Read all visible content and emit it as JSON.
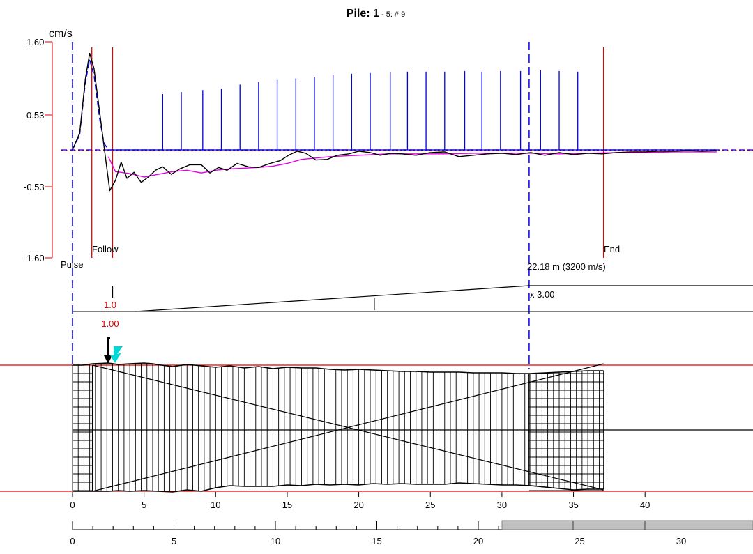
{
  "title": {
    "main": "Pile: 1",
    "suffix": " - 5: # 9"
  },
  "colors": {
    "velocity": "#000000",
    "model": "#e000e0",
    "reference": "#0000e0",
    "markers": "#e00000",
    "grid": "#000000",
    "cursor": "#00d8d8",
    "scrollbar": "#c0c0c0"
  },
  "chart_data": {
    "type": "line",
    "ylabel": "cm/s",
    "y_ticks": [
      "1.60",
      "0.53",
      "-0.53",
      "-1.60"
    ],
    "ylim": [
      -1.6,
      1.6
    ],
    "xlim": [
      0,
      45
    ],
    "markers": {
      "pulse": {
        "label": "Pulse",
        "x": 0
      },
      "follow": {
        "label": "Follow",
        "x": 2.8
      },
      "end": {
        "label": "End",
        "x": 37.1
      },
      "toe": {
        "label": "22.18 m (3200 m/s)",
        "x": 31.9
      }
    },
    "amplification": {
      "label": "x 3.00",
      "start_x": 4.4,
      "end_x": 31.9,
      "factor": 3.0
    },
    "amp_readout": {
      "top": "1.0",
      "bottom": "1.00",
      "x": 2.8
    },
    "reflection_ticks_x": [
      6.3,
      7.6,
      9.1,
      10.4,
      11.7,
      13.0,
      14.3,
      15.6,
      16.9,
      18.2,
      19.5,
      20.8,
      22.2,
      23.4,
      24.7,
      26.0,
      27.4,
      28.6,
      29.9,
      31.3,
      32.7,
      34.0,
      35.3
    ],
    "reflection_ticks_h": [
      0.82,
      0.85,
      0.88,
      0.9,
      0.96,
      1.0,
      1.03,
      1.05,
      1.07,
      1.1,
      1.12,
      1.13,
      1.14,
      1.15,
      1.15,
      1.15,
      1.16,
      1.15,
      1.16,
      1.16,
      1.17,
      1.16,
      1.15
    ],
    "series": [
      {
        "name": "velocity",
        "x": [
          0,
          0.5,
          0.9,
          1.2,
          1.5,
          1.9,
          2.2,
          2.6,
          3.0,
          3.4,
          3.8,
          4.3,
          4.8,
          5.3,
          5.8,
          6.3,
          6.9,
          7.5,
          8.2,
          9.0,
          9.6,
          10.2,
          10.8,
          11.5,
          12.3,
          13.0,
          13.8,
          14.5,
          15.1,
          15.7,
          16.3,
          17.0,
          17.8,
          18.5,
          19.3,
          20.0,
          20.8,
          21.5,
          22.3,
          23.0,
          24.0,
          25.0,
          26.0,
          27.0,
          28.0,
          29.0,
          30.0,
          31.0,
          32.0,
          33.0,
          34.0,
          35.0,
          36.0,
          37.0,
          38.0,
          39.0,
          40.0,
          41.0,
          42.0,
          43.0,
          44.0,
          45.0
        ],
        "y": [
          0.0,
          0.25,
          1.05,
          1.42,
          1.2,
          0.55,
          0.05,
          -0.6,
          -0.45,
          -0.18,
          -0.42,
          -0.33,
          -0.48,
          -0.4,
          -0.3,
          -0.25,
          -0.36,
          -0.28,
          -0.22,
          -0.22,
          -0.34,
          -0.26,
          -0.3,
          -0.2,
          -0.25,
          -0.26,
          -0.2,
          -0.16,
          -0.08,
          -0.02,
          -0.05,
          -0.15,
          -0.14,
          -0.08,
          -0.06,
          -0.02,
          -0.04,
          -0.08,
          -0.05,
          -0.06,
          -0.08,
          -0.04,
          -0.03,
          -0.1,
          -0.08,
          -0.06,
          -0.05,
          -0.07,
          -0.04,
          -0.08,
          -0.04,
          -0.07,
          -0.05,
          -0.06,
          -0.04,
          -0.03,
          -0.03,
          -0.02,
          -0.02,
          -0.01,
          -0.02,
          -0.01
        ]
      },
      {
        "name": "model",
        "x": [
          2.5,
          3.0,
          4.0,
          5.0,
          6.0,
          7.0,
          8.0,
          9.0,
          10.0,
          11.0,
          12.0,
          13.0,
          14.0,
          15.0,
          16.0,
          18.0,
          20.0,
          22.0,
          24.0,
          26.0,
          28.0,
          30.0,
          32.0,
          34.0,
          36.0,
          38.0,
          40.0,
          42.0,
          44.0,
          45.0
        ],
        "y": [
          -0.1,
          -0.32,
          -0.35,
          -0.4,
          -0.36,
          -0.32,
          -0.3,
          -0.34,
          -0.3,
          -0.28,
          -0.27,
          -0.26,
          -0.24,
          -0.2,
          -0.14,
          -0.1,
          -0.08,
          -0.06,
          -0.06,
          -0.06,
          -0.05,
          -0.05,
          -0.05,
          -0.06,
          -0.05,
          -0.04,
          -0.04,
          -0.03,
          -0.03,
          -0.03
        ]
      },
      {
        "name": "reference",
        "x": [
          0,
          0.5,
          0.9,
          1.2,
          1.5,
          1.9,
          2.2,
          2.5,
          3.0,
          45.0
        ],
        "y": [
          0.0,
          0.22,
          1.0,
          1.32,
          1.1,
          0.45,
          0.1,
          0.0,
          0.0,
          0.0
        ]
      }
    ],
    "profile": {
      "top_x": [
        0,
        0.7,
        1.4,
        2.5,
        3.2,
        4.0,
        5.0,
        5.6,
        6.2,
        7.0,
        8.0,
        9.0,
        10.0,
        11.0,
        12.0,
        13.0,
        14.0,
        15.0,
        16.0,
        17.0,
        18.0,
        19.0,
        20.0,
        21.0,
        22.0,
        23.0,
        24.0,
        25.0,
        26.0,
        27.0,
        28.0,
        29.0,
        30.0,
        31.0,
        32.0,
        33.0,
        34.0,
        35.0,
        36.0,
        37.1
      ],
      "top_dev": [
        0,
        0,
        2,
        3,
        1,
        2,
        3,
        2,
        0,
        -2,
        1,
        -1,
        -3,
        -1,
        -4,
        -2,
        -5,
        -3,
        -4,
        -4,
        -6,
        -7,
        -6,
        -7,
        -8,
        -9,
        -9,
        -10,
        -10,
        -10,
        -11,
        -11,
        -11,
        -12,
        -12,
        -11,
        -10,
        -9,
        -8,
        -8
      ],
      "bot_x": [
        0,
        1.4,
        2.5,
        3.2,
        4.0,
        5.0,
        6.0,
        7.0,
        8.0,
        9.0,
        10.0,
        11.0,
        12.0,
        13.0,
        14.0,
        15.0,
        16.0,
        17.0,
        18.0,
        19.0,
        20.0,
        21.0,
        22.0,
        23.0,
        24.0,
        25.0,
        26.0,
        27.0,
        28.0,
        29.0,
        30.0,
        31.0,
        32.0,
        33.0,
        34.0,
        35.0,
        36.0,
        37.1
      ],
      "bot_dev": [
        0,
        0,
        0,
        -1,
        0,
        -1,
        0,
        1,
        -2,
        0,
        -5,
        -8,
        -7,
        -7,
        -7,
        -9,
        -8,
        -10,
        -9,
        -10,
        -9,
        -11,
        -10,
        -11,
        -10,
        -10,
        -10,
        -12,
        -11,
        -10,
        -9,
        -9,
        -8,
        -6,
        -4,
        -2,
        -3,
        -3
      ],
      "head_end_x": 1.4,
      "toe_start_x": 31.9,
      "end_x": 37.1
    },
    "scale1": {
      "ticks": [
        0,
        5,
        10,
        15,
        20,
        25,
        30,
        35,
        40
      ]
    },
    "scale2": {
      "ticks": [
        0,
        5,
        10,
        15,
        20,
        25,
        30
      ]
    }
  }
}
